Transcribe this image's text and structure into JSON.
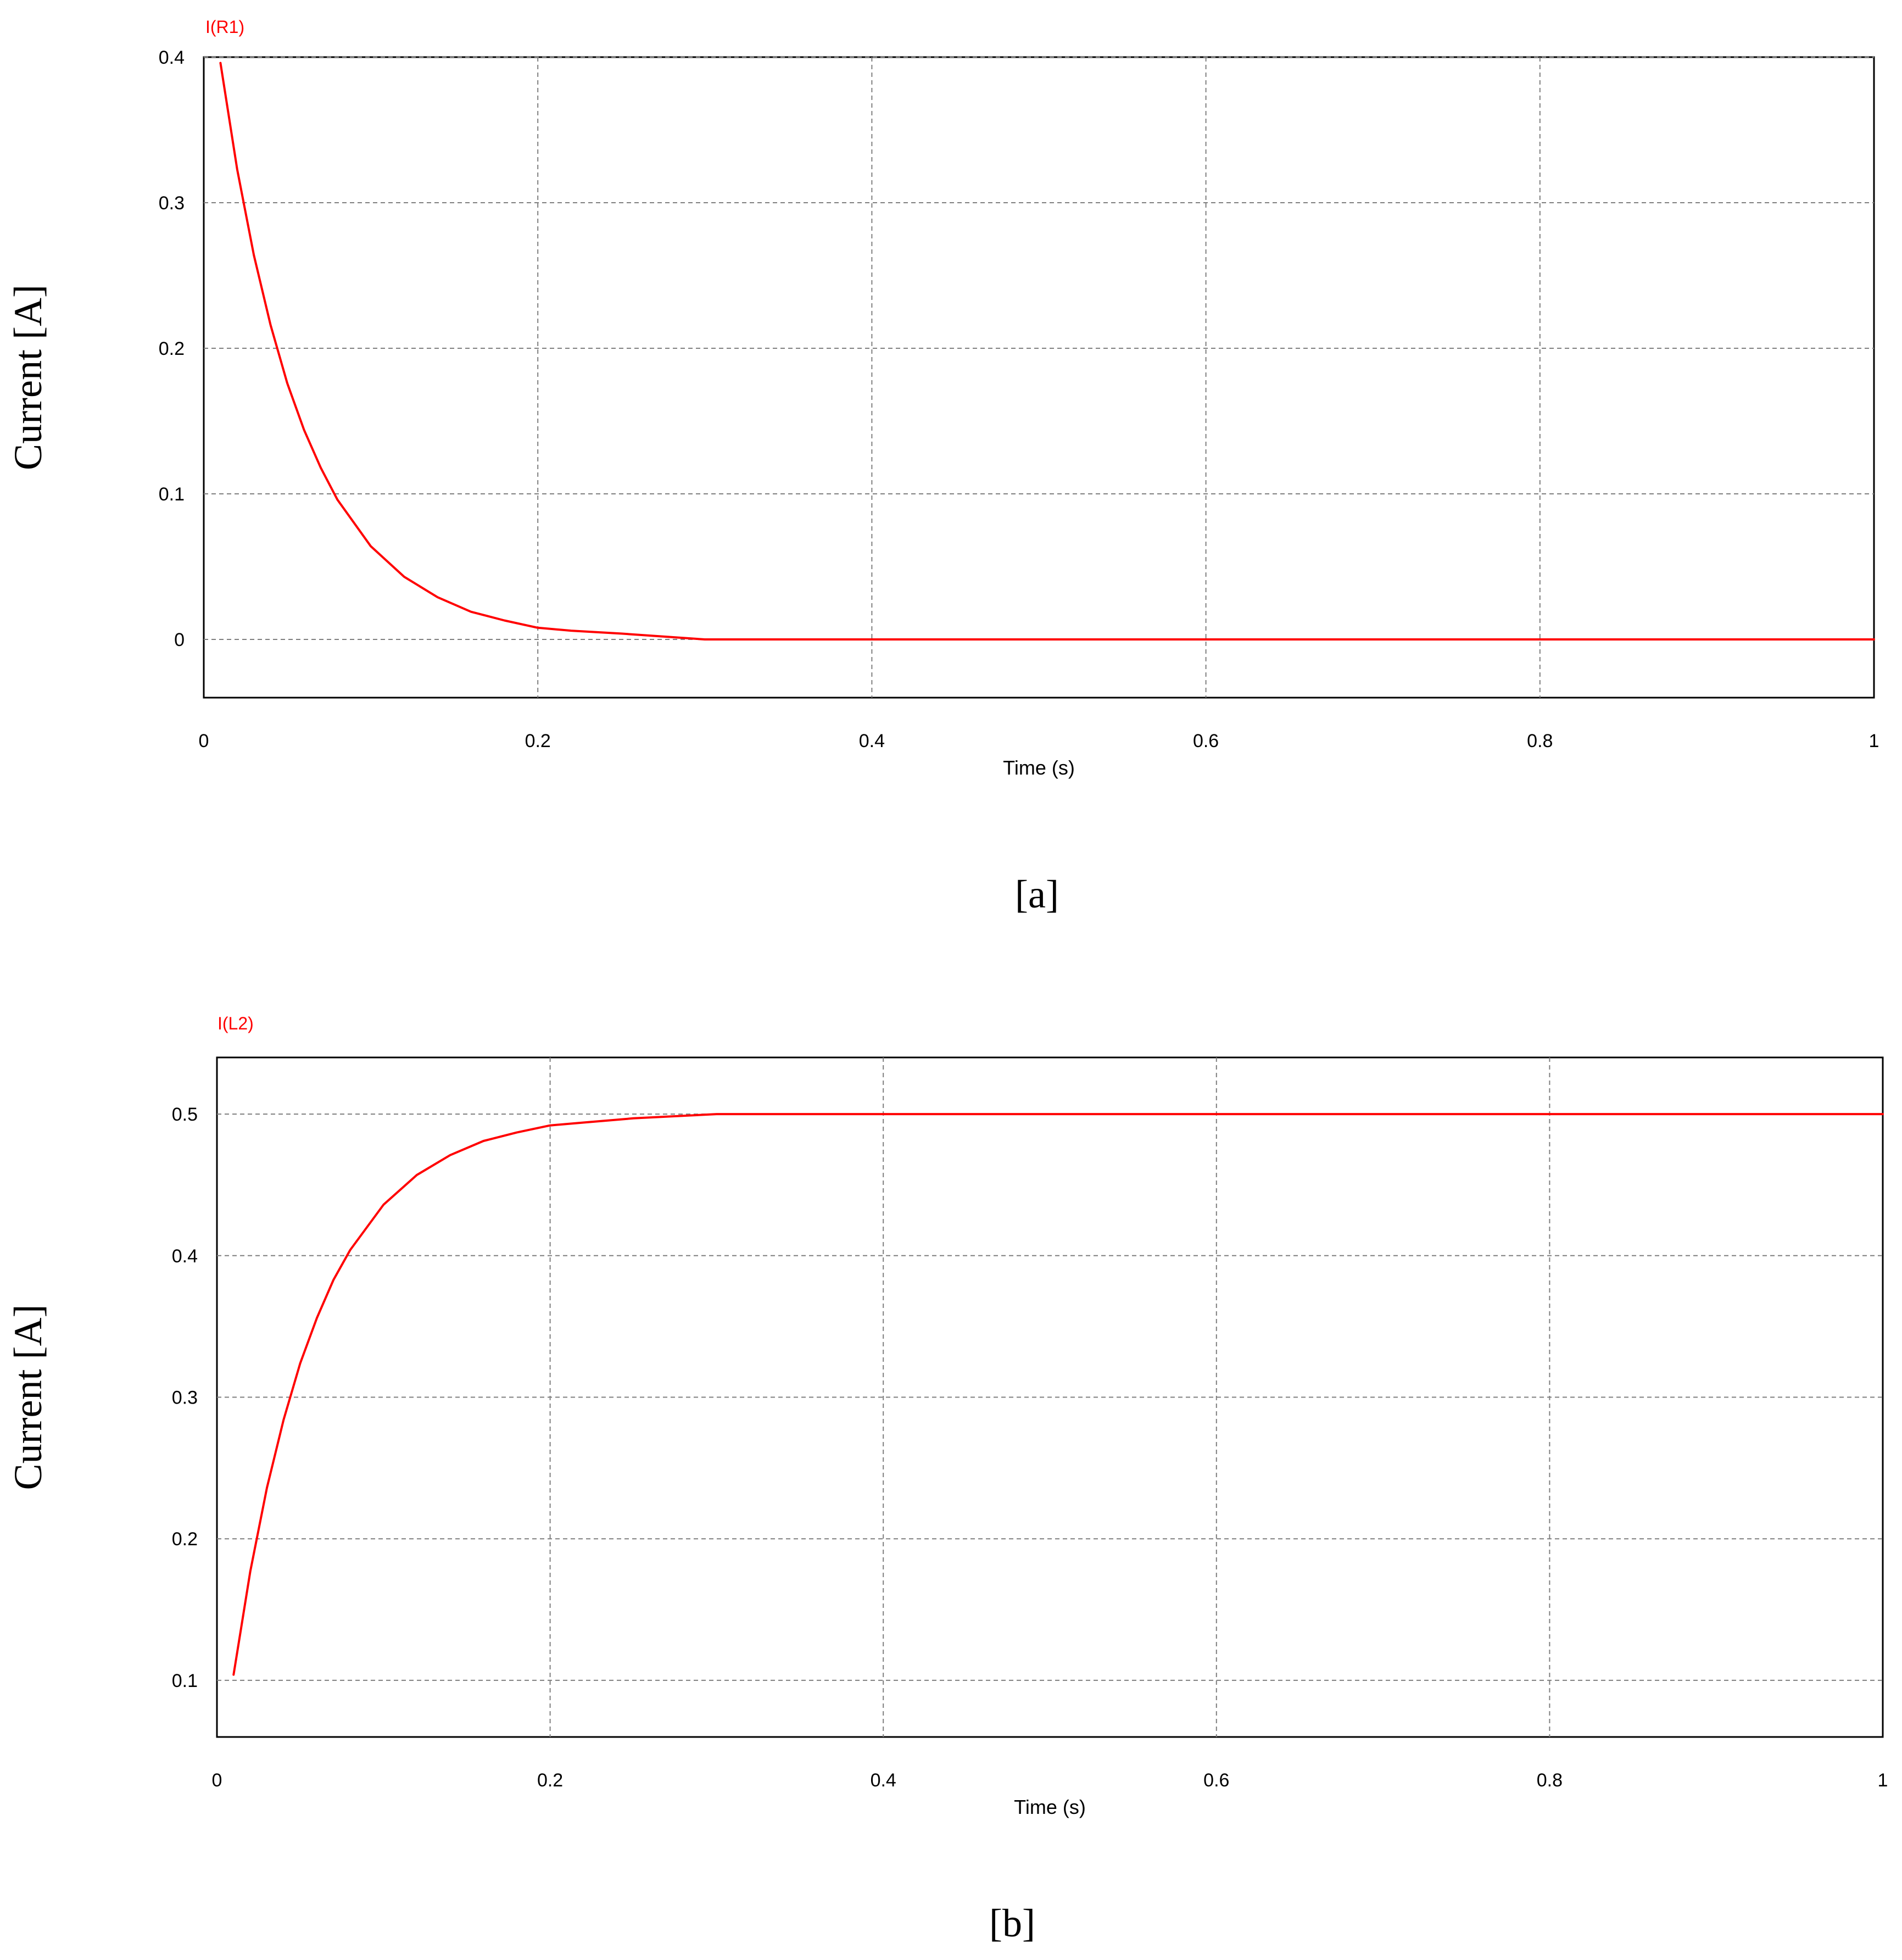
{
  "chart_data": [
    {
      "type": "line",
      "panel_label": "[a]",
      "title": "",
      "series_tag": "I(R1)",
      "xlabel": "Time (s)",
      "ylabel": "Current [A]",
      "xlim": [
        0,
        1
      ],
      "ylim": [
        -0.04,
        0.4
      ],
      "x_ticks": [
        0,
        0.2,
        0.4,
        0.6,
        0.8,
        1
      ],
      "x_tick_labels": [
        "0",
        "0.2",
        "0.4",
        "0.6",
        "0.8",
        "1"
      ],
      "y_ticks": [
        0,
        0.1,
        0.2,
        0.3,
        0.4
      ],
      "y_tick_labels": [
        "0",
        "0.1",
        "0.2",
        "0.3",
        "0.4"
      ],
      "grid": true,
      "legend": "none",
      "series": [
        {
          "name": "I(R1)",
          "color": "#ff0000",
          "x": [
            0.01,
            0.02,
            0.03,
            0.04,
            0.05,
            0.06,
            0.07,
            0.08,
            0.1,
            0.12,
            0.14,
            0.16,
            0.18,
            0.2,
            0.22,
            0.25,
            0.3,
            0.4,
            0.6,
            0.8,
            1.0
          ],
          "y": [
            0.396,
            0.323,
            0.264,
            0.216,
            0.176,
            0.144,
            0.118,
            0.096,
            0.064,
            0.043,
            0.029,
            0.019,
            0.013,
            0.008,
            0.006,
            0.004,
            0.0,
            0.0,
            0.0,
            0.0,
            0.0
          ]
        }
      ]
    },
    {
      "type": "line",
      "panel_label": "[b]",
      "title": "",
      "series_tag": "I(L2)",
      "xlabel": "Time (s)",
      "ylabel": "Current [A]",
      "xlim": [
        0,
        1
      ],
      "ylim": [
        0.06,
        0.54
      ],
      "x_ticks": [
        0,
        0.2,
        0.4,
        0.6,
        0.8,
        1
      ],
      "x_tick_labels": [
        "0",
        "0.2",
        "0.4",
        "0.6",
        "0.8",
        "1"
      ],
      "y_ticks": [
        0.1,
        0.2,
        0.3,
        0.4,
        0.5
      ],
      "y_tick_labels": [
        "0.1",
        "0.2",
        "0.3",
        "0.4",
        "0.5"
      ],
      "grid": true,
      "legend": "none",
      "series": [
        {
          "name": "I(L2)",
          "color": "#ff0000",
          "x": [
            0.01,
            0.02,
            0.03,
            0.04,
            0.05,
            0.06,
            0.07,
            0.08,
            0.1,
            0.12,
            0.14,
            0.16,
            0.18,
            0.2,
            0.22,
            0.25,
            0.3,
            0.4,
            0.6,
            0.8,
            1.0
          ],
          "y": [
            0.104,
            0.177,
            0.236,
            0.284,
            0.324,
            0.356,
            0.383,
            0.404,
            0.436,
            0.457,
            0.471,
            0.481,
            0.487,
            0.492,
            0.494,
            0.497,
            0.5,
            0.5,
            0.5,
            0.5,
            0.5
          ]
        }
      ]
    }
  ]
}
